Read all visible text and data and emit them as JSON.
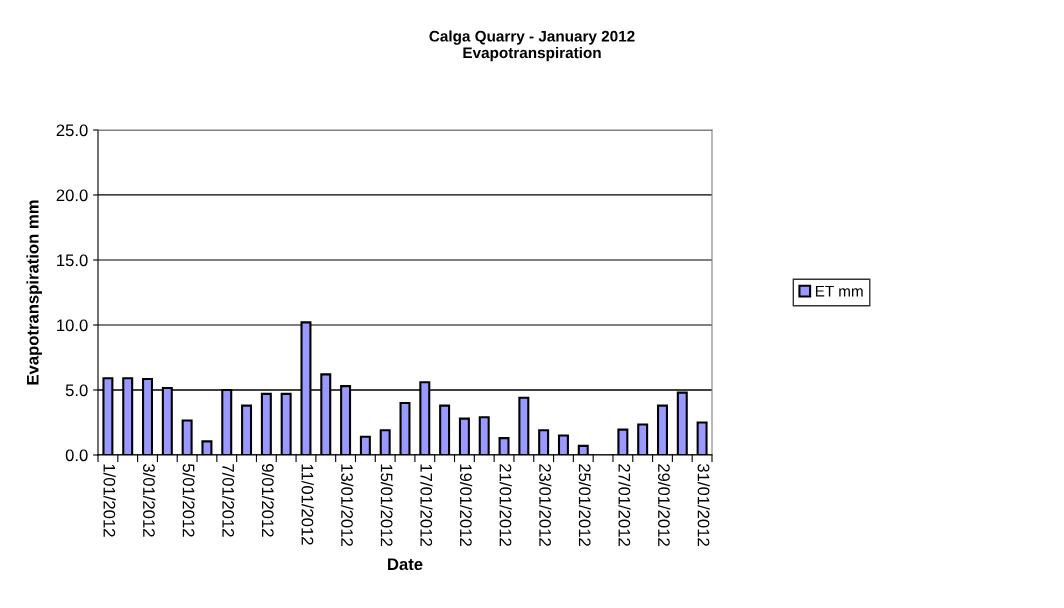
{
  "chart_data": {
    "type": "bar",
    "title": "Calga Quarry - January 2012\nEvapotranspiration",
    "xlabel": "Date",
    "ylabel": "Evapotranspiration mm",
    "categories": [
      "1/01/2012",
      null,
      "3/01/2012",
      null,
      "5/01/2012",
      null,
      "7/01/2012",
      null,
      "9/01/2012",
      null,
      "11/01/2012",
      null,
      "13/01/2012",
      null,
      "15/01/2012",
      null,
      "17/01/2012",
      null,
      "19/01/2012",
      null,
      "21/01/2012",
      null,
      "23/01/2012",
      null,
      "25/01/2012",
      null,
      "27/01/2012",
      null,
      "29/01/2012",
      null,
      "31/01/2012"
    ],
    "series": [
      {
        "name": "ET mm",
        "color": "#9999ff",
        "values": [
          5.9,
          5.9,
          5.85,
          5.15,
          2.65,
          1.05,
          5.0,
          3.8,
          4.7,
          4.7,
          10.2,
          6.2,
          5.3,
          1.4,
          1.9,
          4.0,
          5.6,
          3.8,
          2.8,
          2.9,
          1.3,
          4.4,
          1.9,
          1.5,
          0.7,
          null,
          1.95,
          2.35,
          3.8,
          4.8,
          2.5
        ]
      }
    ],
    "ylim": [
      0,
      25
    ],
    "yticks": [
      {
        "value": 0,
        "label": "0.0"
      },
      {
        "value": 5,
        "label": "5.0"
      },
      {
        "value": 10,
        "label": "10.0"
      },
      {
        "value": 15,
        "label": "15.0"
      },
      {
        "value": 20,
        "label": "20.0"
      },
      {
        "value": 25,
        "label": "25.0"
      }
    ],
    "grid": "y",
    "legend": "right"
  }
}
